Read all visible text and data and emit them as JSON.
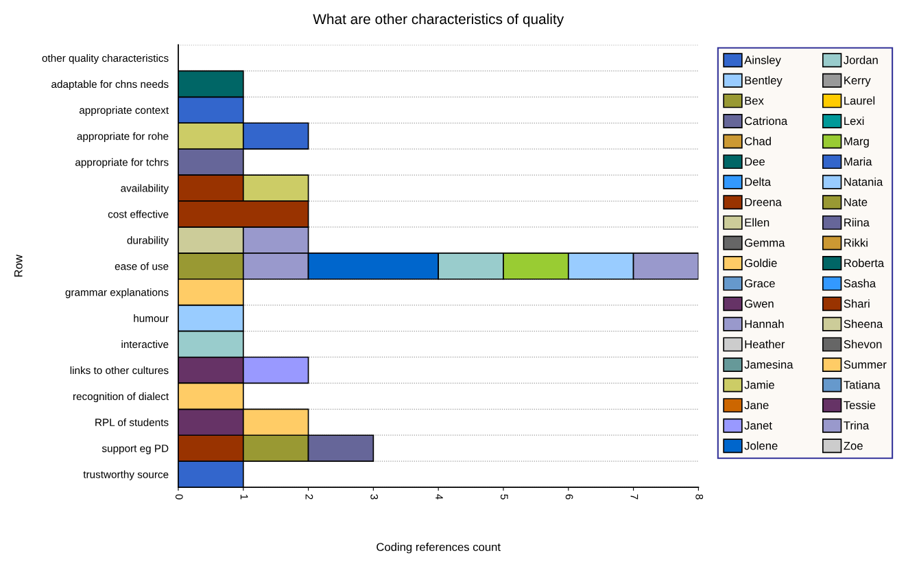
{
  "chart_data": {
    "type": "bar",
    "orientation": "horizontal",
    "stacked": true,
    "title": "What are other characteristics of quality",
    "xlabel": "Coding references count",
    "ylabel": "Row",
    "categories": [
      "other quality characteristics",
      "adaptable for chns needs",
      "appropriate context",
      "appropriate for rohe",
      "appropriate for tchrs",
      "availability",
      "cost effective",
      "durability",
      "ease of use",
      "grammar explanations",
      "humour",
      "interactive",
      "links to other cultures",
      "recognition of dialect",
      "RPL of students",
      "support eg PD",
      "trustworthy source"
    ],
    "xlim": [
      0,
      8
    ],
    "xticks": [
      0,
      1,
      2,
      3,
      4,
      5,
      6,
      7,
      8
    ],
    "grid": "y",
    "legend": "right",
    "series": [
      {
        "name": "Ainsley",
        "color": "#3366cc",
        "values": [
          null,
          null,
          1,
          null,
          null,
          null,
          null,
          null,
          null,
          null,
          null,
          null,
          null,
          null,
          null,
          null,
          1
        ]
      },
      {
        "name": "Bentley",
        "color": "#99ccff",
        "values": [
          null,
          null,
          null,
          null,
          null,
          null,
          null,
          null,
          null,
          null,
          1,
          null,
          null,
          null,
          null,
          null,
          null
        ]
      },
      {
        "name": "Bex",
        "color": "#999933",
        "values": [
          null,
          null,
          null,
          null,
          null,
          null,
          null,
          null,
          1,
          null,
          null,
          null,
          null,
          null,
          null,
          null,
          null
        ]
      },
      {
        "name": "Catriona",
        "color": "#666699",
        "values": [
          null,
          null,
          null,
          null,
          1,
          null,
          null,
          null,
          null,
          null,
          null,
          null,
          null,
          null,
          null,
          null,
          null
        ]
      },
      {
        "name": "Chad",
        "color": "#cc9933",
        "values": [
          null,
          null,
          null,
          null,
          null,
          null,
          null,
          null,
          null,
          null,
          null,
          null,
          null,
          null,
          null,
          null,
          null
        ]
      },
      {
        "name": "Dee",
        "color": "#006666",
        "values": [
          null,
          1,
          null,
          null,
          null,
          null,
          null,
          null,
          null,
          null,
          null,
          null,
          null,
          null,
          null,
          null,
          null
        ]
      },
      {
        "name": "Delta",
        "color": "#3399ff",
        "values": [
          null,
          null,
          null,
          null,
          null,
          null,
          null,
          null,
          null,
          null,
          null,
          null,
          null,
          null,
          null,
          null,
          null
        ]
      },
      {
        "name": "Dreena",
        "color": "#993300",
        "values": [
          null,
          null,
          null,
          null,
          null,
          1,
          null,
          null,
          null,
          null,
          null,
          null,
          null,
          null,
          null,
          1,
          null
        ]
      },
      {
        "name": "Ellen",
        "color": "#cccc99",
        "values": [
          null,
          null,
          null,
          null,
          null,
          null,
          null,
          1,
          null,
          null,
          null,
          null,
          null,
          null,
          null,
          null,
          null
        ]
      },
      {
        "name": "Gemma",
        "color": "#666666",
        "values": [
          null,
          null,
          null,
          null,
          null,
          null,
          null,
          null,
          null,
          null,
          null,
          null,
          null,
          null,
          null,
          null,
          null
        ]
      },
      {
        "name": "Goldie",
        "color": "#ffcc66",
        "values": [
          null,
          null,
          null,
          null,
          null,
          null,
          null,
          null,
          null,
          1,
          null,
          null,
          null,
          null,
          null,
          null,
          null
        ]
      },
      {
        "name": "Grace",
        "color": "#6699cc",
        "values": [
          null,
          null,
          null,
          null,
          null,
          null,
          null,
          null,
          null,
          null,
          null,
          null,
          null,
          null,
          null,
          null,
          null
        ]
      },
      {
        "name": "Gwen",
        "color": "#663366",
        "values": [
          null,
          null,
          null,
          null,
          null,
          null,
          null,
          null,
          null,
          null,
          null,
          null,
          1,
          null,
          1,
          null,
          null
        ]
      },
      {
        "name": "Hannah",
        "color": "#9999cc",
        "values": [
          null,
          null,
          null,
          null,
          null,
          null,
          null,
          1,
          1,
          null,
          null,
          null,
          null,
          null,
          null,
          null,
          null
        ]
      },
      {
        "name": "Heather",
        "color": "#cccccc",
        "values": [
          null,
          null,
          null,
          null,
          null,
          null,
          null,
          null,
          null,
          null,
          null,
          null,
          null,
          null,
          null,
          null,
          null
        ]
      },
      {
        "name": "Jamesina",
        "color": "#669999",
        "values": [
          null,
          null,
          null,
          null,
          null,
          null,
          null,
          null,
          null,
          null,
          null,
          null,
          null,
          null,
          null,
          null,
          null
        ]
      },
      {
        "name": "Jamie",
        "color": "#cccc66",
        "values": [
          null,
          null,
          null,
          1,
          null,
          1,
          null,
          null,
          null,
          null,
          null,
          null,
          null,
          null,
          null,
          null,
          null
        ]
      },
      {
        "name": "Jane",
        "color": "#cc6600",
        "values": [
          null,
          null,
          null,
          null,
          null,
          null,
          null,
          null,
          null,
          null,
          null,
          null,
          null,
          null,
          null,
          null,
          null
        ]
      },
      {
        "name": "Janet",
        "color": "#9999ff",
        "values": [
          null,
          null,
          null,
          null,
          null,
          null,
          null,
          null,
          null,
          null,
          null,
          null,
          1,
          null,
          null,
          null,
          null
        ]
      },
      {
        "name": "Jolene",
        "color": "#0066cc",
        "values": [
          null,
          null,
          null,
          null,
          null,
          null,
          null,
          null,
          2,
          null,
          null,
          null,
          null,
          null,
          null,
          null,
          null
        ]
      },
      {
        "name": "Jordan",
        "color": "#99cccc",
        "values": [
          null,
          null,
          null,
          null,
          null,
          null,
          null,
          null,
          1,
          null,
          null,
          1,
          null,
          null,
          null,
          null,
          null
        ]
      },
      {
        "name": "Kerry",
        "color": "#999999",
        "values": [
          null,
          null,
          null,
          null,
          null,
          null,
          null,
          null,
          null,
          null,
          null,
          null,
          null,
          null,
          null,
          null,
          null
        ]
      },
      {
        "name": "Laurel",
        "color": "#ffcc00",
        "values": [
          null,
          null,
          null,
          null,
          null,
          null,
          null,
          null,
          null,
          null,
          null,
          null,
          null,
          null,
          null,
          null,
          null
        ]
      },
      {
        "name": "Lexi",
        "color": "#009999",
        "values": [
          null,
          null,
          null,
          null,
          null,
          null,
          null,
          null,
          null,
          null,
          null,
          null,
          null,
          null,
          null,
          null,
          null
        ]
      },
      {
        "name": "Marg",
        "color": "#99cc33",
        "values": [
          null,
          null,
          null,
          null,
          null,
          null,
          null,
          null,
          1,
          null,
          null,
          null,
          null,
          null,
          null,
          null,
          null
        ]
      },
      {
        "name": "Maria",
        "color": "#3366cc",
        "values": [
          null,
          null,
          null,
          1,
          null,
          null,
          null,
          null,
          null,
          null,
          null,
          null,
          null,
          null,
          null,
          null,
          null
        ]
      },
      {
        "name": "Natania",
        "color": "#99ccff",
        "values": [
          null,
          null,
          null,
          null,
          null,
          null,
          null,
          null,
          1,
          null,
          null,
          null,
          null,
          null,
          null,
          null,
          null
        ]
      },
      {
        "name": "Nate",
        "color": "#999933",
        "values": [
          null,
          null,
          null,
          null,
          null,
          null,
          null,
          null,
          null,
          null,
          null,
          null,
          null,
          null,
          null,
          1,
          null
        ]
      },
      {
        "name": "Riina",
        "color": "#666699",
        "values": [
          null,
          null,
          null,
          null,
          null,
          null,
          null,
          null,
          null,
          null,
          null,
          null,
          null,
          null,
          null,
          1,
          null
        ]
      },
      {
        "name": "Rikki",
        "color": "#cc9933",
        "values": [
          null,
          null,
          null,
          null,
          null,
          null,
          null,
          null,
          null,
          null,
          null,
          null,
          null,
          null,
          null,
          null,
          null
        ]
      },
      {
        "name": "Roberta",
        "color": "#006666",
        "values": [
          null,
          null,
          null,
          null,
          null,
          null,
          null,
          null,
          null,
          null,
          null,
          null,
          null,
          null,
          null,
          null,
          null
        ]
      },
      {
        "name": "Sasha",
        "color": "#3399ff",
        "values": [
          null,
          null,
          null,
          null,
          null,
          null,
          null,
          null,
          null,
          null,
          null,
          null,
          null,
          null,
          null,
          null,
          null
        ]
      },
      {
        "name": "Shari",
        "color": "#993300",
        "values": [
          null,
          null,
          null,
          null,
          null,
          null,
          2,
          null,
          null,
          null,
          null,
          null,
          null,
          null,
          null,
          null,
          null
        ]
      },
      {
        "name": "Sheena",
        "color": "#cccc99",
        "values": [
          null,
          null,
          null,
          null,
          null,
          null,
          null,
          null,
          null,
          null,
          null,
          null,
          null,
          null,
          null,
          null,
          null
        ]
      },
      {
        "name": "Shevon",
        "color": "#666666",
        "values": [
          null,
          null,
          null,
          null,
          null,
          null,
          null,
          null,
          null,
          null,
          null,
          null,
          null,
          null,
          null,
          null,
          null
        ]
      },
      {
        "name": "Summer",
        "color": "#ffcc66",
        "values": [
          null,
          null,
          null,
          null,
          null,
          null,
          null,
          null,
          null,
          null,
          null,
          null,
          null,
          1,
          1,
          null,
          null
        ]
      },
      {
        "name": "Tatiana",
        "color": "#6699cc",
        "values": [
          null,
          null,
          null,
          null,
          null,
          null,
          null,
          null,
          null,
          null,
          null,
          null,
          null,
          null,
          null,
          null,
          null
        ]
      },
      {
        "name": "Tessie",
        "color": "#663366",
        "values": [
          null,
          null,
          null,
          null,
          null,
          null,
          null,
          null,
          null,
          null,
          null,
          null,
          null,
          null,
          null,
          null,
          null
        ]
      },
      {
        "name": "Trina",
        "color": "#9999cc",
        "values": [
          null,
          null,
          null,
          null,
          null,
          null,
          null,
          null,
          1,
          null,
          null,
          null,
          null,
          null,
          null,
          null,
          null
        ]
      },
      {
        "name": "Zoe",
        "color": "#cccccc",
        "values": [
          null,
          null,
          null,
          null,
          null,
          null,
          null,
          null,
          null,
          null,
          null,
          null,
          null,
          null,
          null,
          null,
          null
        ]
      }
    ]
  }
}
